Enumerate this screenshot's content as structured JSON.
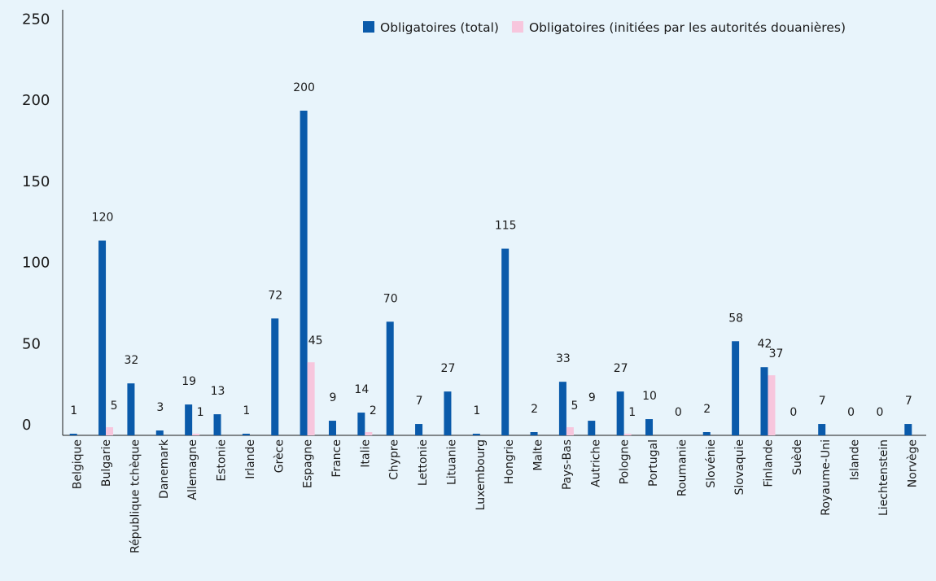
{
  "colors": {
    "background": "#e8f4fb",
    "series_total": "#0a5aaa",
    "series_customs": "#f7c6dd",
    "axis": "#1a1a1a"
  },
  "legend": {
    "placement": "top-right",
    "items": [
      {
        "label": "Obligatoires (total)",
        "color": "#0a5aaa"
      },
      {
        "label": "Obligatoires (initiées par les autorités douanières)",
        "color": "#f7c6dd"
      }
    ]
  },
  "chart_data": {
    "type": "bar",
    "title": "",
    "xlabel": "",
    "ylabel": "",
    "ylim": [
      0,
      250
    ],
    "yticks": [
      0,
      50,
      100,
      150,
      200,
      250
    ],
    "grid": false,
    "categories": [
      "Belgique",
      "Bulgarie",
      "République tchèque",
      "Danemark",
      "Allemagne",
      "Estonie",
      "Irlande",
      "Grèce",
      "Espagne",
      "France",
      "Italie",
      "Chypre",
      "Lettonie",
      "Lituanie",
      "Luxembourg",
      "Hongrie",
      "Malte",
      "Pays-Bas",
      "Autriche",
      "Pologne",
      "Portugal",
      "Roumanie",
      "Slovénie",
      "Slovaquie",
      "Finlande",
      "Suède",
      "Royaume-Uni",
      "Islande",
      "Liechtenstein",
      "Norvège"
    ],
    "series": [
      {
        "name": "Obligatoires (total)",
        "values": [
          1,
          120,
          32,
          3,
          19,
          13,
          1,
          72,
          200,
          9,
          14,
          70,
          7,
          27,
          1,
          115,
          2,
          33,
          9,
          27,
          10,
          0,
          2,
          58,
          42,
          0,
          7,
          0,
          0,
          7
        ],
        "labels": [
          "1",
          "120",
          "32",
          "3",
          "19",
          "13",
          "1",
          "72",
          "200",
          "9",
          "14",
          "70",
          "7",
          "27",
          "1",
          "115",
          "2",
          "33",
          "9",
          "27",
          "10",
          "0",
          "2",
          "58",
          "42",
          "0",
          "7",
          "0",
          "0",
          "7"
        ]
      },
      {
        "name": "Obligatoires (initiées par les autorités douanières)",
        "values": [
          0,
          5,
          0,
          0,
          1,
          0,
          0,
          0,
          45,
          0,
          2,
          0,
          0,
          0,
          0,
          0,
          0,
          5,
          0,
          1,
          0,
          0,
          0,
          0,
          37,
          0,
          0,
          0,
          0,
          0
        ],
        "labels": [
          "",
          "5",
          "",
          "",
          "1",
          "",
          "",
          "",
          "45",
          "",
          "2",
          "",
          "",
          "",
          "",
          "",
          "",
          "5",
          "",
          "1",
          "",
          "",
          "",
          "",
          "37",
          "",
          "",
          "",
          "",
          ""
        ]
      }
    ]
  }
}
